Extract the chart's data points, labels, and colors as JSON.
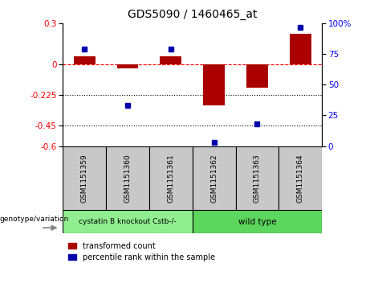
{
  "title": "GDS5090 / 1460465_at",
  "samples": [
    "GSM1151359",
    "GSM1151360",
    "GSM1151361",
    "GSM1151362",
    "GSM1151363",
    "GSM1151364"
  ],
  "transformed_count": [
    0.06,
    -0.03,
    0.06,
    -0.3,
    -0.17,
    0.225
  ],
  "percentile_rank": [
    79,
    33,
    79,
    3,
    18,
    97
  ],
  "ylim_left": [
    -0.6,
    0.3
  ],
  "ylim_right": [
    0,
    100
  ],
  "yticks_left": [
    0.3,
    0,
    -0.225,
    -0.45,
    -0.6
  ],
  "yticks_right": [
    100,
    75,
    50,
    25,
    0
  ],
  "hlines": [
    -0.225,
    -0.45
  ],
  "red_color": "#AA0000",
  "blue_color": "#0000AA",
  "bar_width": 0.5,
  "legend_label_red": "transformed count",
  "legend_label_blue": "percentile rank within the sample",
  "genotype_label": "genotype/variation",
  "group1_label": "cystatin B knockout Cstb-/-",
  "group2_label": "wild type",
  "group1_color": "#90EE90",
  "group2_color": "#5CD65C",
  "gray_color": "#C8C8C8",
  "white_bg": "#FFFFFF"
}
